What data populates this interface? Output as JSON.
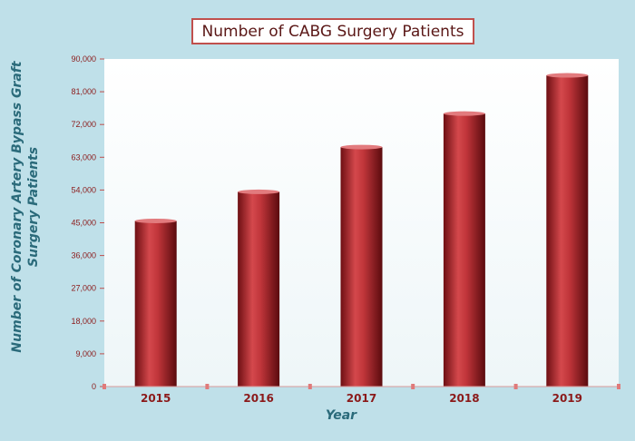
{
  "title": "Number of CABG Surgery Patients",
  "colors": {
    "background": "#bfe0e9",
    "plot_area": "#ffffff",
    "bar": "#b7262c",
    "axis_text": "#2a6a7a",
    "tick_text": "#8b1a1a",
    "title_border": "#c0504d"
  },
  "chart_data": {
    "type": "bar",
    "title": "Number of CABG Surgery Patients",
    "xlabel": "Year",
    "ylabel_lines": [
      "Number of Coronary Artery Bypass Graft",
      "Surgery Patients"
    ],
    "categories": [
      "2015",
      "2016",
      "2017",
      "2018",
      "2019"
    ],
    "values": [
      45500,
      53500,
      65800,
      75000,
      85500
    ],
    "ylim": [
      0,
      90000
    ],
    "yticks": [
      0,
      9000,
      18000,
      27000,
      36000,
      45000,
      54000,
      63000,
      72000,
      81000,
      90000
    ],
    "ytick_labels": [
      "0",
      "9,000",
      "18,000",
      "27,000",
      "36,000",
      "45,000",
      "54,000",
      "63,000",
      "72,000",
      "81,000",
      "90,000"
    ],
    "grid": false,
    "legend": "none"
  }
}
